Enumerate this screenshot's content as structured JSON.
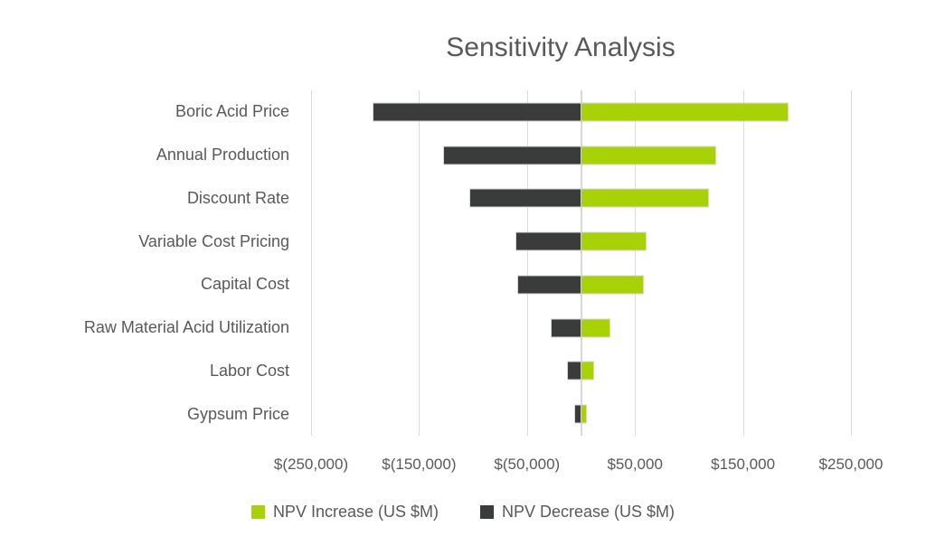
{
  "chart": {
    "title": "Sensitivity Analysis"
  },
  "chart_data": {
    "type": "bar",
    "subtype": "tornado-horizontal",
    "title": "Sensitivity Analysis",
    "categories": [
      "Boric Acid Price",
      "Annual Production",
      "Discount Rate",
      "Variable Cost Pricing",
      "Capital Cost",
      "Raw Material Acid Utilization",
      "Labor Cost",
      "Gypsum Price"
    ],
    "series": [
      {
        "name": "NPV Increase (US $M)",
        "color": "#A8D108",
        "values": [
          191000,
          124000,
          118000,
          60000,
          57000,
          26000,
          11000,
          4500
        ]
      },
      {
        "name": "NPV Decrease (US $M)",
        "color": "#3A3C3B",
        "values": [
          -192000,
          -127000,
          -103000,
          -60000,
          -58000,
          -27000,
          -12000,
          -5500
        ]
      }
    ],
    "xlabel": "",
    "ylabel": "",
    "xlim": [
      -250000,
      250000
    ],
    "x_ticks": [
      {
        "value": -250000,
        "label": "$(250,000)"
      },
      {
        "value": -150000,
        "label": "$(150,000)"
      },
      {
        "value": -50000,
        "label": "$(50,000)"
      },
      {
        "value": 50000,
        "label": "$50,000"
      },
      {
        "value": 150000,
        "label": "$150,000"
      },
      {
        "value": 250000,
        "label": "$250,000"
      }
    ],
    "grid": "vertical",
    "legend_position": "bottom",
    "colors": {
      "increase": "#A8D108",
      "decrease": "#3A3C3B",
      "gridline": "#D9D9D9",
      "text": "#595959",
      "background": "#FFFFFF"
    }
  },
  "legend": {
    "items": [
      {
        "label": "NPV Increase (US $M)",
        "key": "increase"
      },
      {
        "label": "NPV Decrease (US $M)",
        "key": "decrease"
      }
    ]
  }
}
